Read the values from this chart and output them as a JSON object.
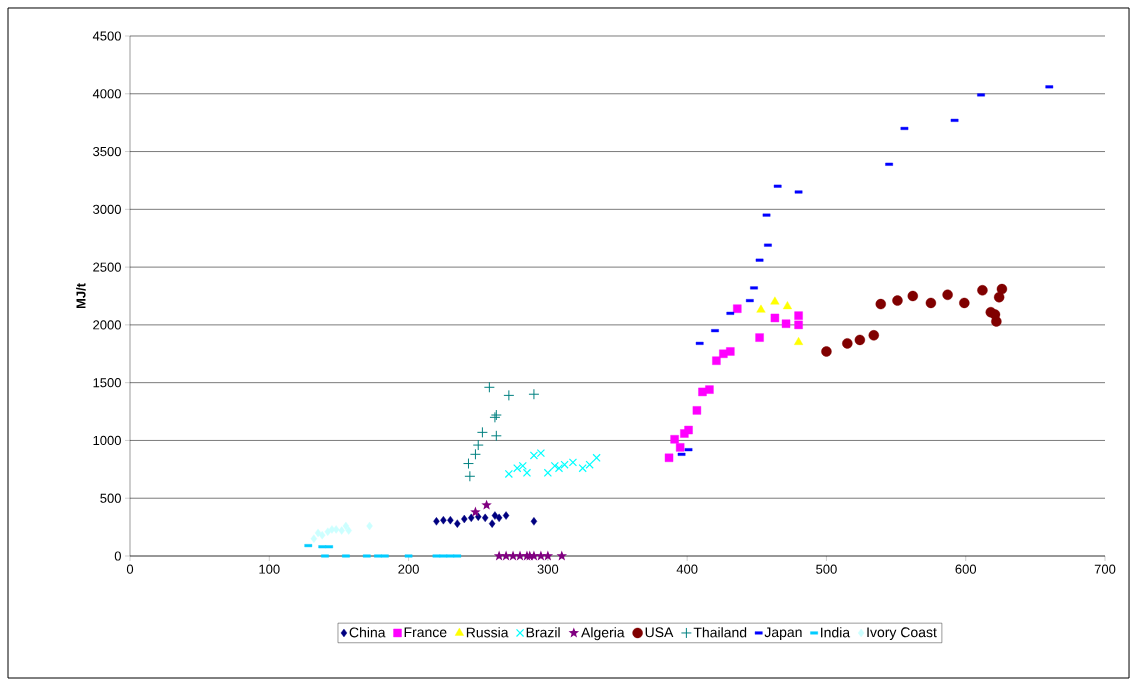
{
  "chart_data": {
    "type": "scatter",
    "ylabel": "MJ/t",
    "xlim": [
      0,
      700
    ],
    "ylim": [
      0,
      4500
    ],
    "xticks": [
      0,
      100,
      200,
      300,
      400,
      500,
      600,
      700
    ],
    "yticks": [
      0,
      500,
      1000,
      1500,
      2000,
      2500,
      3000,
      3500,
      4000,
      4500
    ],
    "grid": "y",
    "legend": "bottom",
    "series": [
      {
        "name": "China",
        "color": "#000080",
        "marker": "diamond",
        "x": [
          220,
          225,
          230,
          235,
          240,
          245,
          250,
          255,
          260,
          262,
          265,
          270,
          290
        ],
        "values": [
          300,
          310,
          310,
          280,
          320,
          330,
          340,
          330,
          280,
          350,
          330,
          350,
          300
        ]
      },
      {
        "name": "France",
        "color": "#ff00ff",
        "marker": "square",
        "x": [
          387,
          391,
          395,
          398,
          401,
          407,
          411,
          416,
          421,
          426,
          431,
          436,
          452,
          463,
          471,
          480,
          480
        ],
        "values": [
          850,
          1010,
          940,
          1060,
          1090,
          1260,
          1420,
          1440,
          1690,
          1750,
          1770,
          2140,
          1890,
          2060,
          2010,
          2080,
          2000
        ]
      },
      {
        "name": "Russia",
        "color": "#ffff00",
        "marker": "triangle",
        "x": [
          453,
          463,
          472,
          480
        ],
        "values": [
          2130,
          2200,
          2160,
          1850
        ]
      },
      {
        "name": "Brazil",
        "color": "#00ffff",
        "marker": "cross",
        "x": [
          272,
          278,
          282,
          285,
          290,
          295,
          300,
          305,
          308,
          312,
          318,
          325,
          330,
          335
        ],
        "values": [
          710,
          760,
          780,
          720,
          870,
          890,
          720,
          780,
          760,
          790,
          810,
          760,
          790,
          850
        ]
      },
      {
        "name": "Algeria",
        "color": "#800080",
        "marker": "star",
        "x": [
          248,
          256,
          265,
          270,
          275,
          280,
          285,
          287,
          290,
          295,
          300,
          310
        ],
        "values": [
          380,
          440,
          0,
          0,
          0,
          0,
          0,
          0,
          0,
          0,
          0,
          0
        ]
      },
      {
        "name": "USA",
        "color": "#800000",
        "marker": "circle",
        "x": [
          500,
          515,
          524,
          534,
          539,
          551,
          562,
          575,
          587,
          599,
          612,
          618,
          621,
          622,
          624,
          626
        ],
        "values": [
          1770,
          1840,
          1870,
          1910,
          2180,
          2210,
          2250,
          2190,
          2260,
          2190,
          2300,
          2110,
          2090,
          2030,
          2240,
          2310
        ]
      },
      {
        "name": "Thailand",
        "color": "#008080",
        "marker": "plus",
        "x": [
          243,
          244,
          248,
          250,
          253,
          258,
          262,
          263,
          263,
          272,
          290
        ],
        "values": [
          800,
          690,
          880,
          960,
          1070,
          1460,
          1200,
          1220,
          1040,
          1390,
          1400
        ]
      },
      {
        "name": "Japan",
        "color": "#0000ff",
        "x": [
          396,
          401,
          409,
          420,
          431,
          445,
          448,
          452,
          457,
          458,
          465,
          480,
          545,
          556,
          592,
          611,
          660
        ],
        "values": [
          880,
          920,
          1840,
          1950,
          2100,
          2210,
          2320,
          2560,
          2950,
          2690,
          3200,
          3150,
          3390,
          3700,
          3770,
          3990,
          4060
        ]
      },
      {
        "name": "India",
        "color": "#00ccff",
        "x": [
          128,
          138,
          143,
          140,
          155,
          170,
          178,
          183,
          200,
          220,
          225,
          230,
          235
        ],
        "values": [
          90,
          80,
          80,
          0,
          0,
          0,
          0,
          0,
          0,
          0,
          0,
          0,
          0
        ]
      },
      {
        "name": "Ivory Coast",
        "color": "#ccffff",
        "marker": "diamond",
        "x": [
          132,
          135,
          138,
          142,
          145,
          148,
          152,
          155,
          157,
          172
        ],
        "values": [
          150,
          200,
          180,
          210,
          230,
          230,
          220,
          260,
          220,
          260
        ]
      }
    ]
  }
}
